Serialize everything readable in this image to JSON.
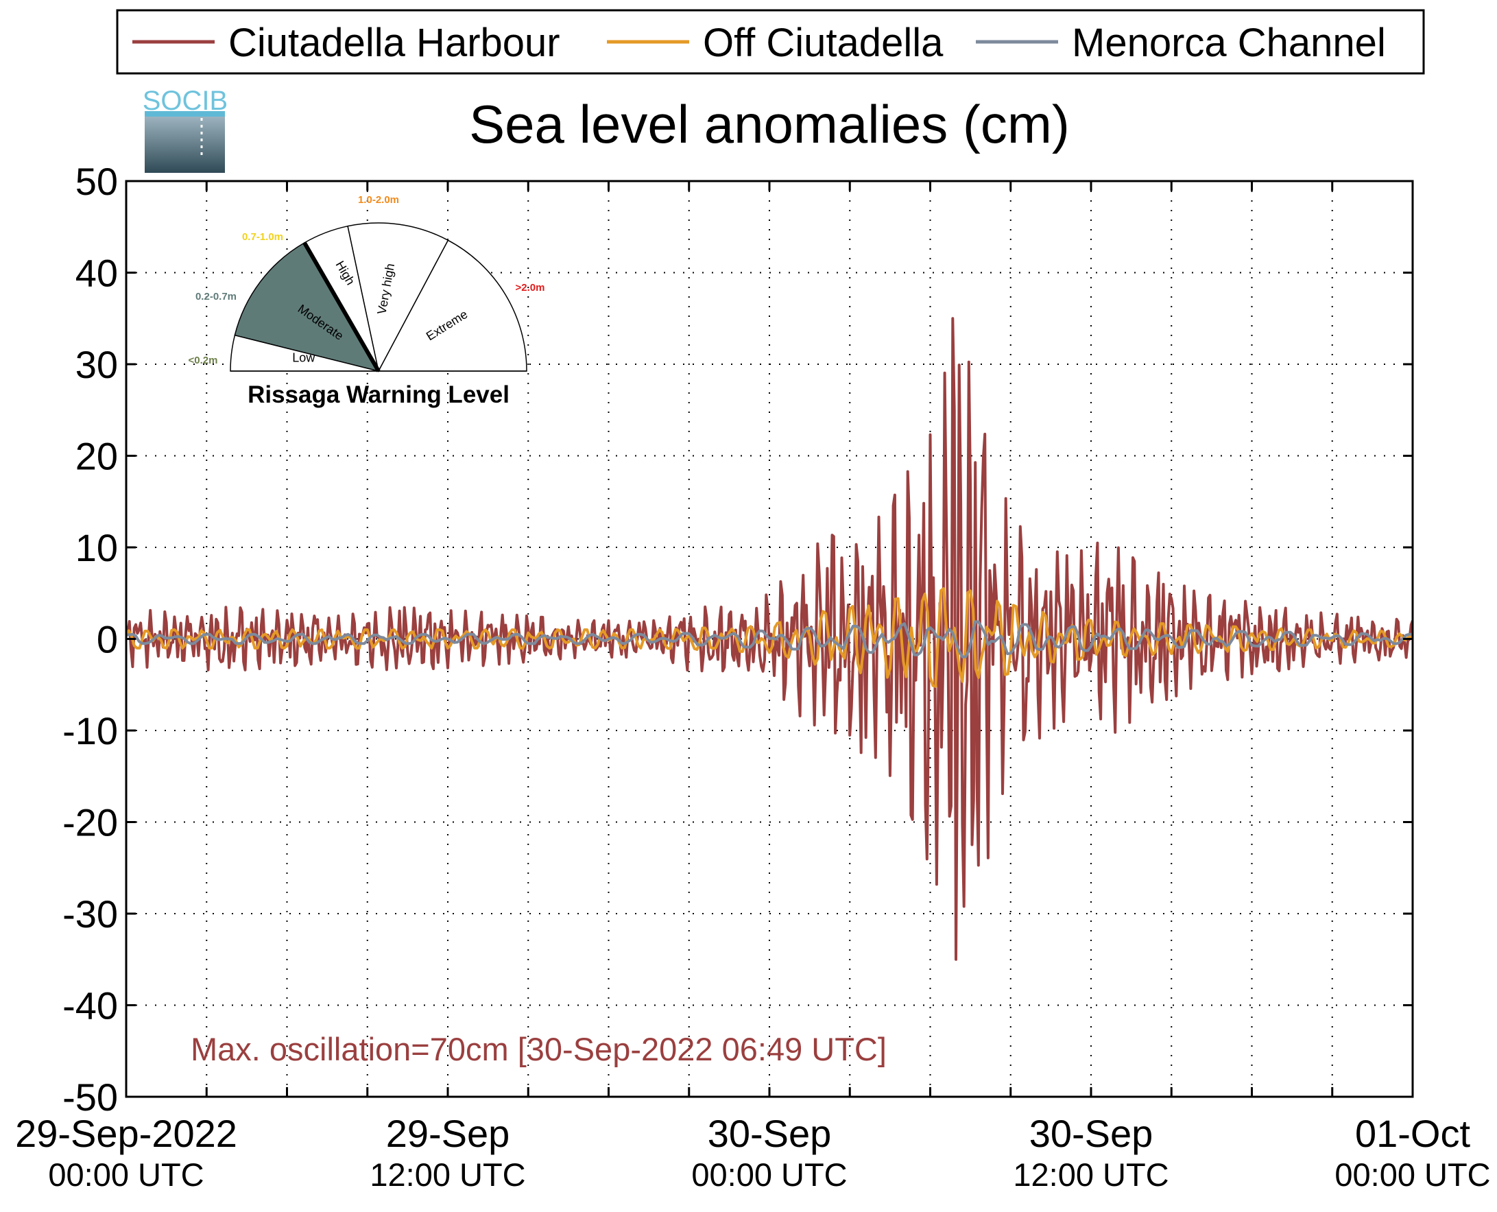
{
  "chart_data": {
    "type": "line",
    "title": "Sea level anomalies (cm)",
    "xlabel": "",
    "ylabel": "",
    "ylim": [
      -50,
      50
    ],
    "yticks": [
      50,
      40,
      30,
      20,
      10,
      0,
      -10,
      -20,
      -30,
      -40,
      -50
    ],
    "yticklabels": [
      "50",
      "40",
      "30",
      "20",
      "10",
      "0",
      "-10",
      "-20",
      "-30",
      "-40",
      "-50"
    ],
    "xlim_hours": [
      0,
      48
    ],
    "x_minor_step_hours": 3,
    "xticks": [
      {
        "hour": 0,
        "date": "29-Sep-2022",
        "time": "00:00 UTC"
      },
      {
        "hour": 12,
        "date": "29-Sep",
        "time": "12:00 UTC"
      },
      {
        "hour": 24,
        "date": "30-Sep",
        "time": "00:00 UTC"
      },
      {
        "hour": 36,
        "date": "30-Sep",
        "time": "12:00 UTC"
      },
      {
        "hour": 48,
        "date": "01-Oct",
        "time": "00:00 UTC"
      }
    ],
    "grid": true,
    "legend_position": "top",
    "series": [
      {
        "name": "Ciutadella Harbour",
        "color": "#9b3f3f",
        "envelope_cm": [
          [
            0,
            3
          ],
          [
            4,
            3.5
          ],
          [
            8,
            2.5
          ],
          [
            10,
            3.5
          ],
          [
            13,
            3
          ],
          [
            17,
            2
          ],
          [
            20,
            2
          ],
          [
            21,
            3.5
          ],
          [
            23,
            3.5
          ],
          [
            24,
            5
          ],
          [
            25,
            8
          ],
          [
            26,
            11
          ],
          [
            27,
            12
          ],
          [
            28,
            13
          ],
          [
            29,
            17
          ],
          [
            30,
            25
          ],
          [
            30.8,
            31
          ],
          [
            31.2,
            35
          ],
          [
            32,
            26
          ],
          [
            33,
            13
          ],
          [
            34,
            11
          ],
          [
            35,
            9
          ],
          [
            36,
            10
          ],
          [
            36.5,
            11
          ],
          [
            38,
            8
          ],
          [
            40,
            5
          ],
          [
            42,
            4
          ],
          [
            44,
            3
          ],
          [
            48,
            2
          ]
        ],
        "peak_cm": [
          {
            "hour": 30.85,
            "value": 35
          },
          {
            "hour": 30.95,
            "value": -35
          }
        ]
      },
      {
        "name": "Off Ciutadella",
        "color": "#e59a26",
        "envelope_cm": [
          [
            0,
            1
          ],
          [
            20,
            1
          ],
          [
            24,
            1.5
          ],
          [
            26,
            3
          ],
          [
            28,
            4
          ],
          [
            30,
            5
          ],
          [
            31,
            6
          ],
          [
            32,
            4.5
          ],
          [
            34,
            3
          ],
          [
            36,
            2
          ],
          [
            40,
            1.5
          ],
          [
            44,
            1
          ],
          [
            48,
            0.8
          ]
        ]
      },
      {
        "name": "Menorca Channel",
        "color": "#7d8a9c",
        "envelope_cm": [
          [
            0,
            0.5
          ],
          [
            20,
            0.5
          ],
          [
            24,
            1
          ],
          [
            28,
            1.5
          ],
          [
            31,
            2
          ],
          [
            34,
            1.5
          ],
          [
            38,
            1
          ],
          [
            48,
            0.5
          ]
        ]
      }
    ],
    "annotations": [
      {
        "text": "Max. oscillation=70cm [30-Sep-2022 06:49 UTC]",
        "color": "#9b3f3f"
      }
    ]
  },
  "logo": {
    "text": "SOCIB"
  },
  "gauge": {
    "title": "Rissaga Warning Level",
    "current_level": "Moderate",
    "fill_color": "#5f7b78",
    "sectors": [
      {
        "label": "Low",
        "range": "<0.2m",
        "range_color": "#6d7f4a"
      },
      {
        "label": "Moderate",
        "range": "0.2-0.7m",
        "range_color": "#5f7b78"
      },
      {
        "label": "High",
        "range": "0.7-1.0m",
        "range_color": "#f2d21b"
      },
      {
        "label": "Very high",
        "range": "1.0-2.0m",
        "range_color": "#f28a1b"
      },
      {
        "label": "Extreme",
        "range": ">2.0m",
        "range_color": "#e31b1b"
      }
    ]
  }
}
